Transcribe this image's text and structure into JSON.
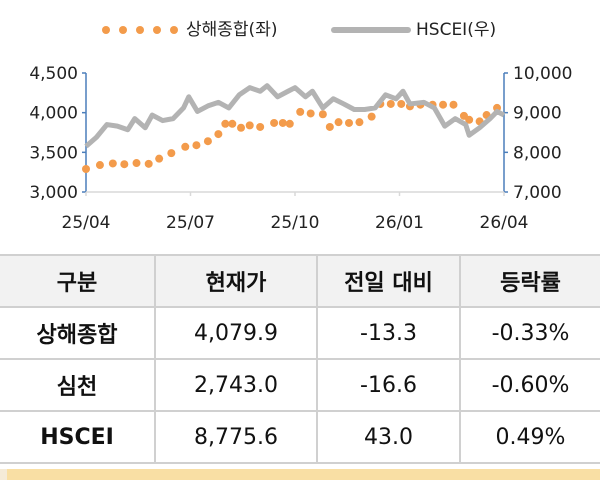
{
  "chart_data": {
    "type": "line",
    "legend": [
      {
        "name": "상해종합(좌)",
        "style": "dots",
        "color": "#f39b4b"
      },
      {
        "name": "HSCEI(우)",
        "style": "line",
        "color": "#b3b3b3"
      }
    ],
    "legend_position": "top",
    "x_ticks": [
      "25/04",
      "25/07",
      "25/10",
      "26/01",
      "26/04"
    ],
    "x_range_months": [
      0,
      12
    ],
    "left_axis": {
      "range": [
        3000,
        4500
      ],
      "ticks": [
        "3,000",
        "3,500",
        "4,000",
        "4,500"
      ]
    },
    "right_axis": {
      "range": [
        7000,
        10000
      ],
      "ticks": [
        "7,000",
        "8,000",
        "9,000",
        "10,000"
      ]
    },
    "axis_color": "#4a7ebb",
    "series": [
      {
        "name": "상해종합(좌)",
        "axis": "left",
        "x": [
          0,
          0.4,
          0.77,
          1.1,
          1.45,
          1.8,
          2.1,
          2.45,
          2.85,
          3.17,
          3.5,
          3.8,
          4.0,
          4.2,
          4.45,
          4.7,
          5.0,
          5.4,
          5.65,
          5.85,
          6.15,
          6.45,
          6.8,
          7.0,
          7.25,
          7.55,
          7.85,
          8.2,
          8.45,
          8.75,
          9.05,
          9.3,
          9.6,
          9.95,
          10.25,
          10.55,
          10.85,
          11.0,
          11.3,
          11.5,
          11.8
        ],
        "values": [
          3290,
          3340,
          3360,
          3350,
          3365,
          3355,
          3420,
          3490,
          3570,
          3590,
          3640,
          3730,
          3860,
          3860,
          3810,
          3840,
          3820,
          3870,
          3870,
          3860,
          4010,
          3990,
          3980,
          3820,
          3880,
          3870,
          3880,
          3950,
          4110,
          4110,
          4110,
          4080,
          4100,
          4100,
          4100,
          4100,
          3960,
          3910,
          3890,
          3970,
          4060
        ]
      },
      {
        "name": "HSCEI(우)",
        "axis": "right",
        "x": [
          0,
          0.3,
          0.6,
          0.9,
          1.2,
          1.4,
          1.7,
          1.9,
          2.2,
          2.5,
          2.8,
          2.95,
          3.2,
          3.5,
          3.8,
          4.1,
          4.4,
          4.7,
          5.0,
          5.2,
          5.5,
          5.8,
          6.0,
          6.3,
          6.5,
          6.8,
          7.1,
          7.4,
          7.7,
          8.0,
          8.3,
          8.6,
          8.9,
          9.1,
          9.3,
          9.7,
          10.0,
          10.3,
          10.6,
          10.9,
          11.0,
          11.3,
          11.6,
          11.8,
          12
        ],
        "values": [
          8150,
          8380,
          8700,
          8660,
          8570,
          8850,
          8620,
          8940,
          8800,
          8850,
          9120,
          9400,
          9030,
          9170,
          9260,
          9120,
          9450,
          9630,
          9540,
          9680,
          9400,
          9540,
          9630,
          9400,
          9540,
          9120,
          9350,
          9220,
          9080,
          9080,
          9120,
          9450,
          9350,
          9540,
          9220,
          9260,
          9120,
          8660,
          8850,
          8700,
          8430,
          8620,
          8850,
          9030,
          8940
        ]
      }
    ]
  },
  "table": {
    "headers": [
      "구분",
      "현재가",
      "전일 대비",
      "등락률"
    ],
    "rows": [
      [
        "상해종합",
        "4,079.9",
        "-13.3",
        "-0.33%"
      ],
      [
        "심천",
        "2,743.0",
        "-16.6",
        "-0.60%"
      ],
      [
        "HSCEI",
        "8,775.6",
        "43.0",
        "0.49%"
      ]
    ]
  }
}
